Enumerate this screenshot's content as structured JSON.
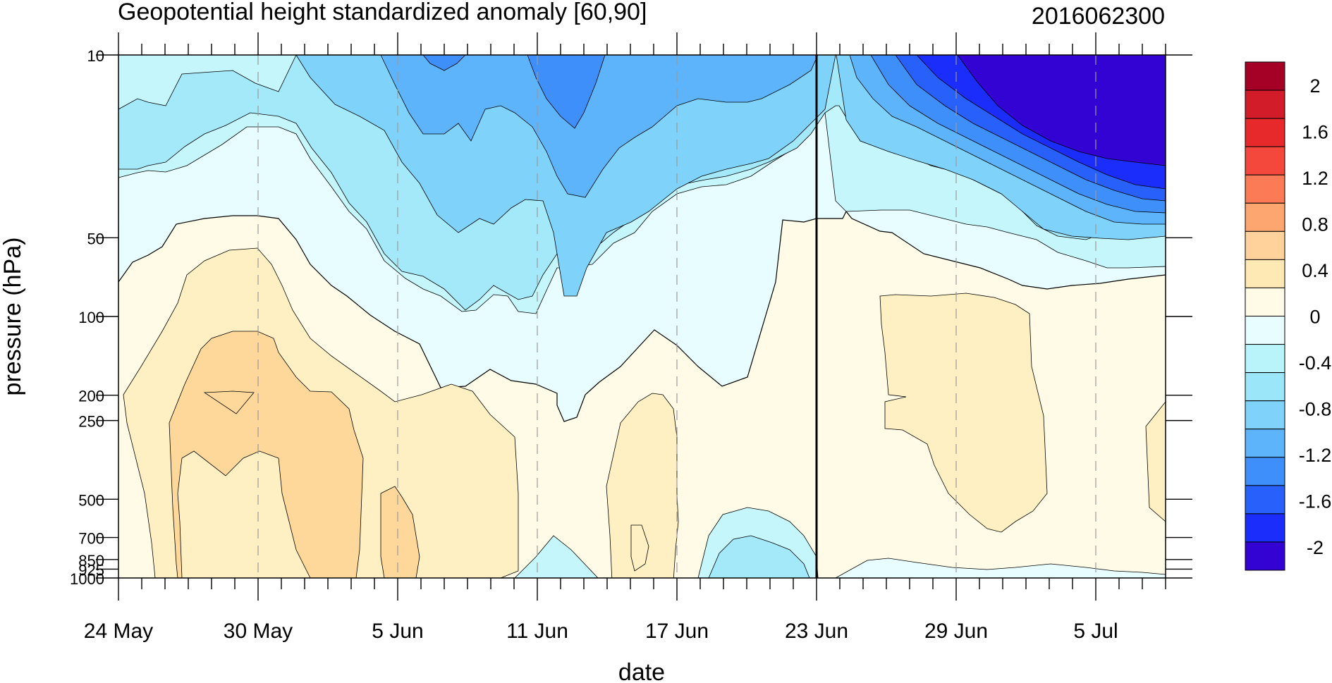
{
  "chart_data": {
    "type": "contour",
    "title": "Geopotential height standardized anomaly [60,90]",
    "subtitle": "2016062300",
    "xlabel": "date",
    "ylabel": "pressure (hPa)",
    "x_start": "24 May",
    "x_end": "9 Jul",
    "x_tick_labels": [
      "24 May",
      "30 May",
      "5 Jun",
      "11 Jun",
      "17 Jun",
      "23 Jun",
      "29 Jun",
      "5 Jul"
    ],
    "x_tick_day_offsets": [
      0,
      6,
      12,
      18,
      24,
      30,
      36,
      42
    ],
    "x_total_days": 45,
    "y_scale": "log",
    "y_reversed": true,
    "y_range": [
      1000,
      10
    ],
    "y_ticks": [
      10,
      50,
      100,
      200,
      250,
      500,
      700,
      850,
      925,
      1000
    ],
    "y_tick_labels": [
      "10",
      "50",
      "100",
      "200",
      "250",
      "500",
      "700",
      "850",
      "925",
      "1000"
    ],
    "vertical_marker": "23 Jun",
    "colorbar": {
      "labels": [
        "2",
        "1.6",
        "1.2",
        "0.8",
        "0.4",
        "0",
        "-0.4",
        "-0.8",
        "-1.2",
        "-1.6",
        "-2"
      ],
      "label_values": [
        2,
        1.6,
        1.2,
        0.8,
        0.4,
        0,
        -0.4,
        -0.8,
        -1.2,
        -1.6,
        -2
      ],
      "colors_top_to_bottom": [
        "#a50026",
        "#d21c2a",
        "#e8292c",
        "#f4483c",
        "#fb7b57",
        "#fda66f",
        "#fed29a",
        "#fee8b4",
        "#fffbe6",
        "#e8fdff",
        "#b9f4fb",
        "#9ce6fa",
        "#7fd3fb",
        "#5eb4fb",
        "#3f8ffb",
        "#2860fb",
        "#1a2dfa",
        "#3303d4"
      ]
    },
    "fill_colors": {
      "anom_0_0p2": "#fffbe6",
      "anom_0p2_0p4": "#fef0c2",
      "anom_0p4_0p6": "#fdd89a",
      "anom_m0p2_0": "#e8fdff",
      "anom_m0p4_m0p2": "#c4f6fb",
      "anom_m0p6_m0p4": "#a4e9fa",
      "anom_m0p8_m0p6": "#7fd3fb",
      "anom_m1p0_m0p8": "#5eb4fb",
      "anom_m1p2_m1p0": "#3f8ffb",
      "anom_m1p4_m1p2": "#2860fb",
      "anom_m1p6_m1p4": "#1a2dfa",
      "anom_lt_m2": "#3303d4"
    }
  }
}
